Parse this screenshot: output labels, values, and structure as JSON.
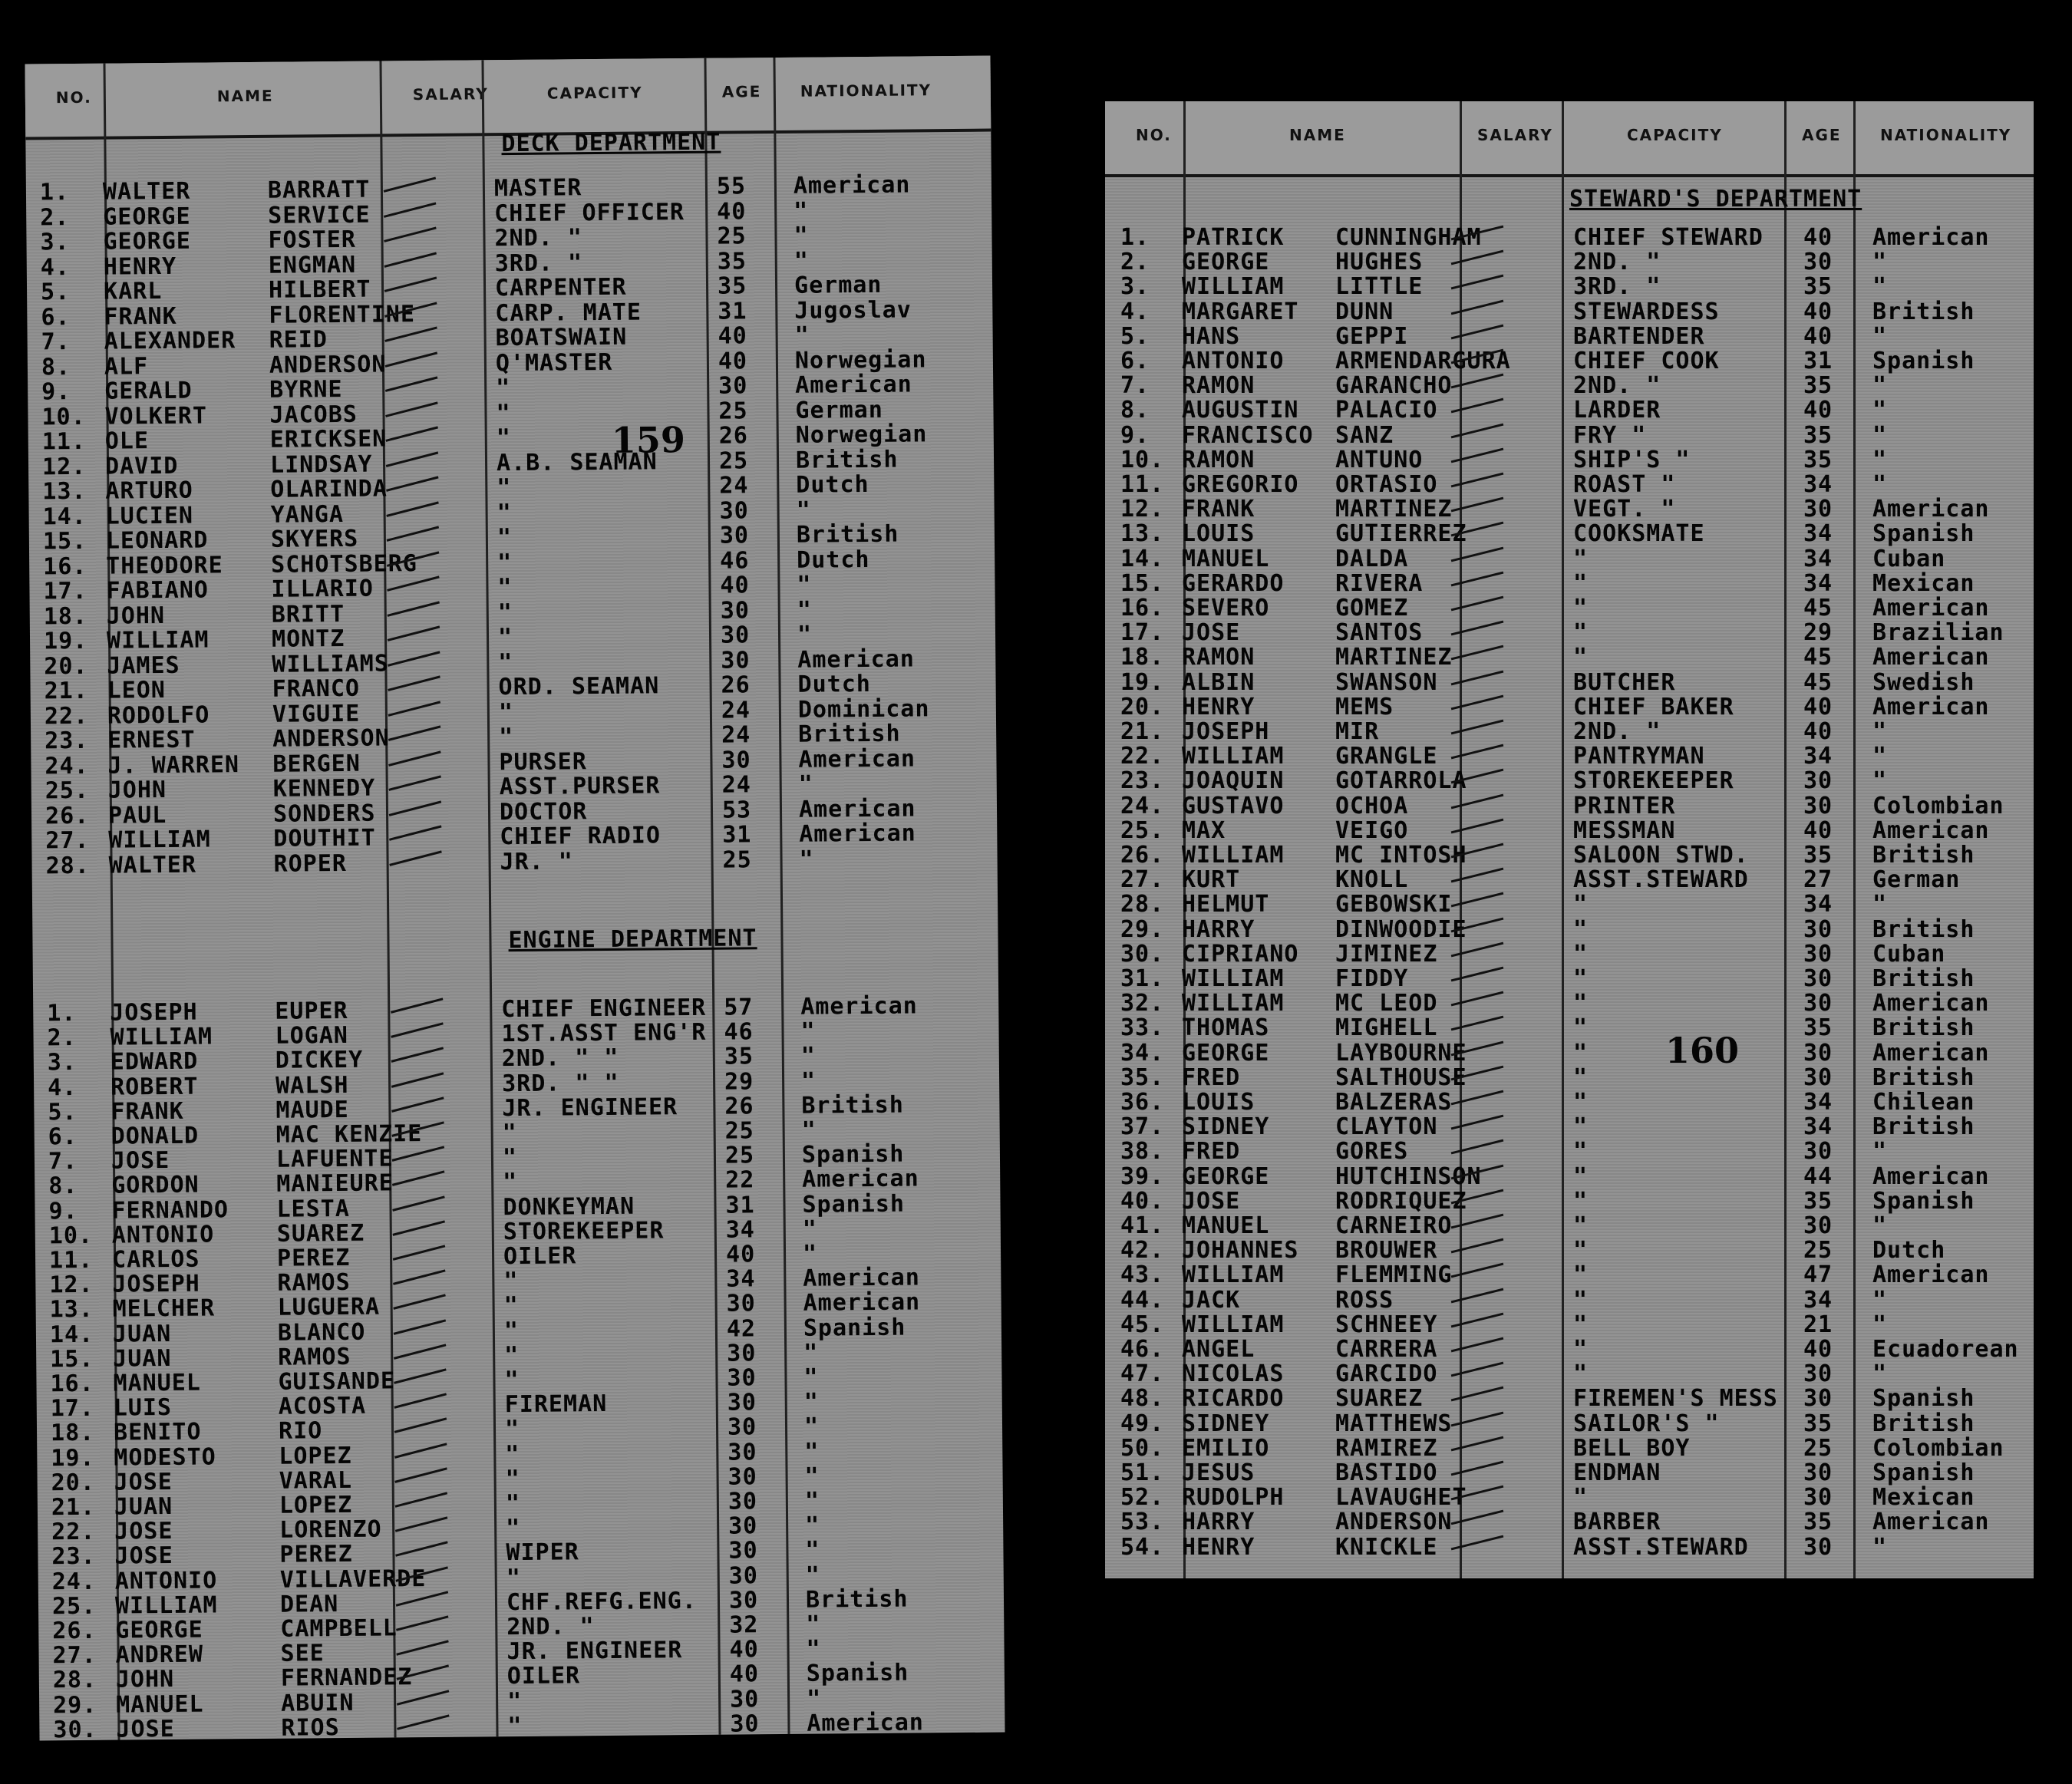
{
  "headers": {
    "no": "NO.",
    "name": "NAME",
    "salary": "SALARY",
    "capacity": "CAPACITY",
    "age": "AGE",
    "nationality": "NATIONALITY"
  },
  "left_sheet": {
    "deck_department": "DECK DEPARTMENT",
    "engine_department": "ENGINE DEPARTMENT",
    "stamp": "159",
    "deck_rows": [
      {
        "no": "1.",
        "first": "WALTER",
        "last": "BARRATT",
        "capacity": "MASTER",
        "age": "55",
        "nationality": "American"
      },
      {
        "no": "2.",
        "first": "GEORGE",
        "last": "SERVICE",
        "capacity": "CHIEF OFFICER",
        "age": "40",
        "nationality": "\""
      },
      {
        "no": "3.",
        "first": "GEORGE",
        "last": "FOSTER",
        "capacity": "2ND. \"",
        "age": "25",
        "nationality": "\""
      },
      {
        "no": "4.",
        "first": "HENRY",
        "last": "ENGMAN",
        "capacity": "3RD. \"",
        "age": "35",
        "nationality": "\""
      },
      {
        "no": "5.",
        "first": "KARL",
        "last": "HILBERT",
        "capacity": "CARPENTER",
        "age": "35",
        "nationality": "German"
      },
      {
        "no": "6.",
        "first": "FRANK",
        "last": "FLORENTINE",
        "capacity": "CARP. MATE",
        "age": "31",
        "nationality": "Jugoslav"
      },
      {
        "no": "7.",
        "first": "ALEXANDER",
        "last": "REID",
        "capacity": "BOATSWAIN",
        "age": "40",
        "nationality": "\""
      },
      {
        "no": "8.",
        "first": "ALF",
        "last": "ANDERSON",
        "capacity": "Q'MASTER",
        "age": "40",
        "nationality": "Norwegian"
      },
      {
        "no": "9.",
        "first": "GERALD",
        "last": "BYRNE",
        "capacity": "\"",
        "age": "30",
        "nationality": "American"
      },
      {
        "no": "10.",
        "first": "VOLKERT",
        "last": "JACOBS",
        "capacity": "\"",
        "age": "25",
        "nationality": "German"
      },
      {
        "no": "11.",
        "first": "OLE",
        "last": "ERICKSEN",
        "capacity": "\"",
        "age": "26",
        "nationality": "Norwegian"
      },
      {
        "no": "12.",
        "first": "DAVID",
        "last": "LINDSAY",
        "capacity": "A.B. SEAMAN",
        "age": "25",
        "nationality": "British"
      },
      {
        "no": "13.",
        "first": "ARTURO",
        "last": "OLARINDA",
        "capacity": "\"",
        "age": "24",
        "nationality": "Dutch"
      },
      {
        "no": "14.",
        "first": "LUCIEN",
        "last": "YANGA",
        "capacity": "\"",
        "age": "30",
        "nationality": "\""
      },
      {
        "no": "15.",
        "first": "LEONARD",
        "last": "SKYERS",
        "capacity": "\"",
        "age": "30",
        "nationality": "British"
      },
      {
        "no": "16.",
        "first": "THEODORE",
        "last": "SCHOTSBERG",
        "capacity": "\"",
        "age": "46",
        "nationality": "Dutch"
      },
      {
        "no": "17.",
        "first": "FABIANO",
        "last": "ILLARIO",
        "capacity": "\"",
        "age": "40",
        "nationality": "\""
      },
      {
        "no": "18.",
        "first": "JOHN",
        "last": "BRITT",
        "capacity": "\"",
        "age": "30",
        "nationality": "\""
      },
      {
        "no": "19.",
        "first": "WILLIAM",
        "last": "MONTZ",
        "capacity": "\"",
        "age": "30",
        "nationality": "\""
      },
      {
        "no": "20.",
        "first": "JAMES",
        "last": "WILLIAMS",
        "capacity": "\"",
        "age": "30",
        "nationality": "American"
      },
      {
        "no": "21.",
        "first": "LEON",
        "last": "FRANCO",
        "capacity": "ORD. SEAMAN",
        "age": "26",
        "nationality": "Dutch"
      },
      {
        "no": "22.",
        "first": "RODOLFO",
        "last": "VIGUIE",
        "capacity": "\"",
        "age": "24",
        "nationality": "Dominican"
      },
      {
        "no": "23.",
        "first": "ERNEST",
        "last": "ANDERSON",
        "capacity": "\"",
        "age": "24",
        "nationality": "British"
      },
      {
        "no": "24.",
        "first": "J. WARREN",
        "last": "BERGEN",
        "capacity": "PURSER",
        "age": "30",
        "nationality": "American"
      },
      {
        "no": "25.",
        "first": "JOHN",
        "last": "KENNEDY",
        "capacity": "ASST.PURSER",
        "age": "24",
        "nationality": "\""
      },
      {
        "no": "26.",
        "first": "PAUL",
        "last": "SONDERS",
        "capacity": "DOCTOR",
        "age": "53",
        "nationality": "American"
      },
      {
        "no": "27.",
        "first": "WILLIAM",
        "last": "DOUTHIT",
        "capacity": "CHIEF RADIO",
        "age": "31",
        "nationality": "American"
      },
      {
        "no": "28.",
        "first": "WALTER",
        "last": "ROPER",
        "capacity": "JR. \"",
        "age": "25",
        "nationality": "\""
      }
    ],
    "engine_rows": [
      {
        "no": "1.",
        "first": "JOSEPH",
        "last": "EUPER",
        "capacity": "CHIEF ENGINEER",
        "age": "57",
        "nationality": "American"
      },
      {
        "no": "2.",
        "first": "WILLIAM",
        "last": "LOGAN",
        "capacity": "1ST.ASST ENG'R",
        "age": "46",
        "nationality": "\""
      },
      {
        "no": "3.",
        "first": "EDWARD",
        "last": "DICKEY",
        "capacity": "2ND. \" \"",
        "age": "35",
        "nationality": "\""
      },
      {
        "no": "4.",
        "first": "ROBERT",
        "last": "WALSH",
        "capacity": "3RD. \" \"",
        "age": "29",
        "nationality": "\""
      },
      {
        "no": "5.",
        "first": "FRANK",
        "last": "MAUDE",
        "capacity": "JR. ENGINEER",
        "age": "26",
        "nationality": "British"
      },
      {
        "no": "6.",
        "first": "DONALD",
        "last": "MAC KENZIE",
        "capacity": "\"",
        "age": "25",
        "nationality": "\""
      },
      {
        "no": "7.",
        "first": "JOSE",
        "last": "LAFUENTE",
        "capacity": "\"",
        "age": "25",
        "nationality": "Spanish"
      },
      {
        "no": "8.",
        "first": "GORDON",
        "last": "MANIEURE",
        "capacity": "\"",
        "age": "22",
        "nationality": "American"
      },
      {
        "no": "9.",
        "first": "FERNANDO",
        "last": "LESTA",
        "capacity": "DONKEYMAN",
        "age": "31",
        "nationality": "Spanish"
      },
      {
        "no": "10.",
        "first": "ANTONIO",
        "last": "SUAREZ",
        "capacity": "STOREKEEPER",
        "age": "34",
        "nationality": "\""
      },
      {
        "no": "11.",
        "first": "CARLOS",
        "last": "PEREZ",
        "capacity": "OILER",
        "age": "40",
        "nationality": "\""
      },
      {
        "no": "12.",
        "first": "JOSEPH",
        "last": "RAMOS",
        "capacity": "\"",
        "age": "34",
        "nationality": "American"
      },
      {
        "no": "13.",
        "first": "MELCHER",
        "last": "LUGUERA",
        "capacity": "\"",
        "age": "30",
        "nationality": "American"
      },
      {
        "no": "14.",
        "first": "JUAN",
        "last": "BLANCO",
        "capacity": "\"",
        "age": "42",
        "nationality": "Spanish"
      },
      {
        "no": "15.",
        "first": "JUAN",
        "last": "RAMOS",
        "capacity": "\"",
        "age": "30",
        "nationality": "\""
      },
      {
        "no": "16.",
        "first": "MANUEL",
        "last": "GUISANDE",
        "capacity": "\"",
        "age": "30",
        "nationality": "\""
      },
      {
        "no": "17.",
        "first": "LUIS",
        "last": "ACOSTA",
        "capacity": "FIREMAN",
        "age": "30",
        "nationality": "\""
      },
      {
        "no": "18.",
        "first": "BENITO",
        "last": "RIO",
        "capacity": "\"",
        "age": "30",
        "nationality": "\""
      },
      {
        "no": "19.",
        "first": "MODESTO",
        "last": "LOPEZ",
        "capacity": "\"",
        "age": "30",
        "nationality": "\""
      },
      {
        "no": "20.",
        "first": "JOSE",
        "last": "VARAL",
        "capacity": "\"",
        "age": "30",
        "nationality": "\""
      },
      {
        "no": "21.",
        "first": "JUAN",
        "last": "LOPEZ",
        "capacity": "\"",
        "age": "30",
        "nationality": "\""
      },
      {
        "no": "22.",
        "first": "JOSE",
        "last": "LORENZO",
        "capacity": "\"",
        "age": "30",
        "nationality": "\""
      },
      {
        "no": "23.",
        "first": "JOSE",
        "last": "PEREZ",
        "capacity": "WIPER",
        "age": "30",
        "nationality": "\""
      },
      {
        "no": "24.",
        "first": "ANTONIO",
        "last": "VILLAVERDE",
        "capacity": "\"",
        "age": "30",
        "nationality": "\""
      },
      {
        "no": "25.",
        "first": "WILLIAM",
        "last": "DEAN",
        "capacity": "CHF.REFG.ENG.",
        "age": "30",
        "nationality": "British"
      },
      {
        "no": "26.",
        "first": "GEORGE",
        "last": "CAMPBELL",
        "capacity": "2ND. \"",
        "age": "32",
        "nationality": "\""
      },
      {
        "no": "27.",
        "first": "ANDREW",
        "last": "SEE",
        "capacity": "JR. ENGINEER",
        "age": "40",
        "nationality": "\""
      },
      {
        "no": "28.",
        "first": "JOHN",
        "last": "FERNANDEZ",
        "capacity": "OILER",
        "age": "40",
        "nationality": "Spanish"
      },
      {
        "no": "29.",
        "first": "MANUEL",
        "last": "ABUIN",
        "capacity": "\"",
        "age": "30",
        "nationality": "\""
      },
      {
        "no": "30.",
        "first": "JOSE",
        "last": "RIOS",
        "capacity": "\"",
        "age": "30",
        "nationality": "American"
      }
    ]
  },
  "right_sheet": {
    "stewards_department": "STEWARD'S DEPARTMENT",
    "stamp": "160",
    "rows": [
      {
        "no": "1.",
        "first": "PATRICK",
        "last": "CUNNINGHAM",
        "capacity": "CHIEF STEWARD",
        "age": "40",
        "nationality": "American"
      },
      {
        "no": "2.",
        "first": "GEORGE",
        "last": "HUGHES",
        "capacity": "2ND. \"",
        "age": "30",
        "nationality": "\""
      },
      {
        "no": "3.",
        "first": "WILLIAM",
        "last": "LITTLE",
        "capacity": "3RD. \"",
        "age": "35",
        "nationality": "\""
      },
      {
        "no": "4.",
        "first": "MARGARET",
        "last": "DUNN",
        "capacity": "STEWARDESS",
        "age": "40",
        "nationality": "British"
      },
      {
        "no": "5.",
        "first": "HANS",
        "last": "GEPPI",
        "capacity": "BARTENDER",
        "age": "40",
        "nationality": "\""
      },
      {
        "no": "6.",
        "first": "ANTONIO",
        "last": "ARMENDARGURA",
        "capacity": "CHIEF COOK",
        "age": "31",
        "nationality": "Spanish"
      },
      {
        "no": "7.",
        "first": "RAMON",
        "last": "GARANCHO",
        "capacity": "2ND. \"",
        "age": "35",
        "nationality": "\""
      },
      {
        "no": "8.",
        "first": "AUGUSTIN",
        "last": "PALACIO",
        "capacity": "LARDER",
        "age": "40",
        "nationality": "\""
      },
      {
        "no": "9.",
        "first": "FRANCISCO",
        "last": "SANZ",
        "capacity": "FRY \"",
        "age": "35",
        "nationality": "\""
      },
      {
        "no": "10.",
        "first": "RAMON",
        "last": "ANTUNO",
        "capacity": "SHIP'S \"",
        "age": "35",
        "nationality": "\""
      },
      {
        "no": "11.",
        "first": "GREGORIO",
        "last": "ORTASIO",
        "capacity": "ROAST \"",
        "age": "34",
        "nationality": "\""
      },
      {
        "no": "12.",
        "first": "FRANK",
        "last": "MARTINEZ",
        "capacity": "VEGT. \"",
        "age": "30",
        "nationality": "American"
      },
      {
        "no": "13.",
        "first": "LOUIS",
        "last": "GUTIERREZ",
        "capacity": "COOKSMATE",
        "age": "34",
        "nationality": "Spanish"
      },
      {
        "no": "14.",
        "first": "MANUEL",
        "last": "DALDA",
        "capacity": "\"",
        "age": "34",
        "nationality": "Cuban"
      },
      {
        "no": "15.",
        "first": "GERARDO",
        "last": "RIVERA",
        "capacity": "\"",
        "age": "34",
        "nationality": "Mexican"
      },
      {
        "no": "16.",
        "first": "SEVERO",
        "last": "GOMEZ",
        "capacity": "\"",
        "age": "45",
        "nationality": "American"
      },
      {
        "no": "17.",
        "first": "JOSE",
        "last": "SANTOS",
        "capacity": "\"",
        "age": "29",
        "nationality": "Brazilian"
      },
      {
        "no": "18.",
        "first": "RAMON",
        "last": "MARTINEZ",
        "capacity": "\"",
        "age": "45",
        "nationality": "American"
      },
      {
        "no": "19.",
        "first": "ALBIN",
        "last": "SWANSON",
        "capacity": "BUTCHER",
        "age": "45",
        "nationality": "Swedish"
      },
      {
        "no": "20.",
        "first": "HENRY",
        "last": "MEMS",
        "capacity": "CHIEF BAKER",
        "age": "40",
        "nationality": "American"
      },
      {
        "no": "21.",
        "first": "JOSEPH",
        "last": "MIR",
        "capacity": "2ND. \"",
        "age": "40",
        "nationality": "\""
      },
      {
        "no": "22.",
        "first": "WILLIAM",
        "last": "GRANGLE",
        "capacity": "PANTRYMAN",
        "age": "34",
        "nationality": "\""
      },
      {
        "no": "23.",
        "first": "JOAQUIN",
        "last": "GOTARROLA",
        "capacity": "STOREKEEPER",
        "age": "30",
        "nationality": "\""
      },
      {
        "no": "24.",
        "first": "GUSTAVO",
        "last": "OCHOA",
        "capacity": "PRINTER",
        "age": "30",
        "nationality": "Colombian"
      },
      {
        "no": "25.",
        "first": "MAX",
        "last": "VEIGO",
        "capacity": "MESSMAN",
        "age": "40",
        "nationality": "American"
      },
      {
        "no": "26.",
        "first": "WILLIAM",
        "last": "MC INTOSH",
        "capacity": "SALOON STWD.",
        "age": "35",
        "nationality": "British"
      },
      {
        "no": "27.",
        "first": "KURT",
        "last": "KNOLL",
        "capacity": "ASST.STEWARD",
        "age": "27",
        "nationality": "German"
      },
      {
        "no": "28.",
        "first": "HELMUT",
        "last": "GEBOWSKI",
        "capacity": "\"",
        "age": "34",
        "nationality": "\""
      },
      {
        "no": "29.",
        "first": "HARRY",
        "last": "DINWOODIE",
        "capacity": "\"",
        "age": "30",
        "nationality": "British"
      },
      {
        "no": "30.",
        "first": "CIPRIANO",
        "last": "JIMINEZ",
        "capacity": "\"",
        "age": "30",
        "nationality": "Cuban"
      },
      {
        "no": "31.",
        "first": "WILLIAM",
        "last": "FIDDY",
        "capacity": "\"",
        "age": "30",
        "nationality": "British"
      },
      {
        "no": "32.",
        "first": "WILLIAM",
        "last": "MC LEOD",
        "capacity": "\"",
        "age": "30",
        "nationality": "American"
      },
      {
        "no": "33.",
        "first": "THOMAS",
        "last": "MIGHELL",
        "capacity": "\"",
        "age": "35",
        "nationality": "British"
      },
      {
        "no": "34.",
        "first": "GEORGE",
        "last": "LAYBOURNE",
        "capacity": "\"",
        "age": "30",
        "nationality": "American"
      },
      {
        "no": "35.",
        "first": "FRED",
        "last": "SALTHOUSE",
        "capacity": "\"",
        "age": "30",
        "nationality": "British"
      },
      {
        "no": "36.",
        "first": "LOUIS",
        "last": "BALZERAS",
        "capacity": "\"",
        "age": "34",
        "nationality": "Chilean"
      },
      {
        "no": "37.",
        "first": "SIDNEY",
        "last": "CLAYTON",
        "capacity": "\"",
        "age": "34",
        "nationality": "British"
      },
      {
        "no": "38.",
        "first": "FRED",
        "last": "GORES",
        "capacity": "\"",
        "age": "30",
        "nationality": "\""
      },
      {
        "no": "39.",
        "first": "GEORGE",
        "last": "HUTCHINSON",
        "capacity": "\"",
        "age": "44",
        "nationality": "American"
      },
      {
        "no": "40.",
        "first": "JOSE",
        "last": "RODRIQUEZ",
        "capacity": "\"",
        "age": "35",
        "nationality": "Spanish"
      },
      {
        "no": "41.",
        "first": "MANUEL",
        "last": "CARNEIRO",
        "capacity": "\"",
        "age": "30",
        "nationality": "\""
      },
      {
        "no": "42.",
        "first": "JOHANNES",
        "last": "BROUWER",
        "capacity": "\"",
        "age": "25",
        "nationality": "Dutch"
      },
      {
        "no": "43.",
        "first": "WILLIAM",
        "last": "FLEMMING",
        "capacity": "\"",
        "age": "47",
        "nationality": "American"
      },
      {
        "no": "44.",
        "first": "JACK",
        "last": "ROSS",
        "capacity": "\"",
        "age": "34",
        "nationality": "\""
      },
      {
        "no": "45.",
        "first": "WILLIAM",
        "last": "SCHNEEY",
        "capacity": "\"",
        "age": "21",
        "nationality": "\""
      },
      {
        "no": "46.",
        "first": "ANGEL",
        "last": "CARRERA",
        "capacity": "\"",
        "age": "40",
        "nationality": "Ecuadorean"
      },
      {
        "no": "47.",
        "first": "NICOLAS",
        "last": "GARCIDO",
        "capacity": "\"",
        "age": "30",
        "nationality": "\""
      },
      {
        "no": "48.",
        "first": "RICARDO",
        "last": "SUAREZ",
        "capacity": "FIREMEN'S MESS",
        "age": "30",
        "nationality": "Spanish"
      },
      {
        "no": "49.",
        "first": "SIDNEY",
        "last": "MATTHEWS",
        "capacity": "SAILOR'S \"",
        "age": "35",
        "nationality": "British"
      },
      {
        "no": "50.",
        "first": "EMILIO",
        "last": "RAMIREZ",
        "capacity": "BELL BOY",
        "age": "25",
        "nationality": "Colombian"
      },
      {
        "no": "51.",
        "first": "JESUS",
        "last": "BASTIDO",
        "capacity": "ENDMAN",
        "age": "30",
        "nationality": "Spanish"
      },
      {
        "no": "52.",
        "first": "RUDOLPH",
        "last": "LAVAUGHET",
        "capacity": "\"",
        "age": "30",
        "nationality": "Mexican"
      },
      {
        "no": "53.",
        "first": "HARRY",
        "last": "ANDERSON",
        "capacity": "BARBER",
        "age": "35",
        "nationality": "American"
      },
      {
        "no": "54.",
        "first": "HENRY",
        "last": "KNICKLE",
        "capacity": "ASST.STEWARD",
        "age": "30",
        "nationality": "\""
      }
    ]
  }
}
